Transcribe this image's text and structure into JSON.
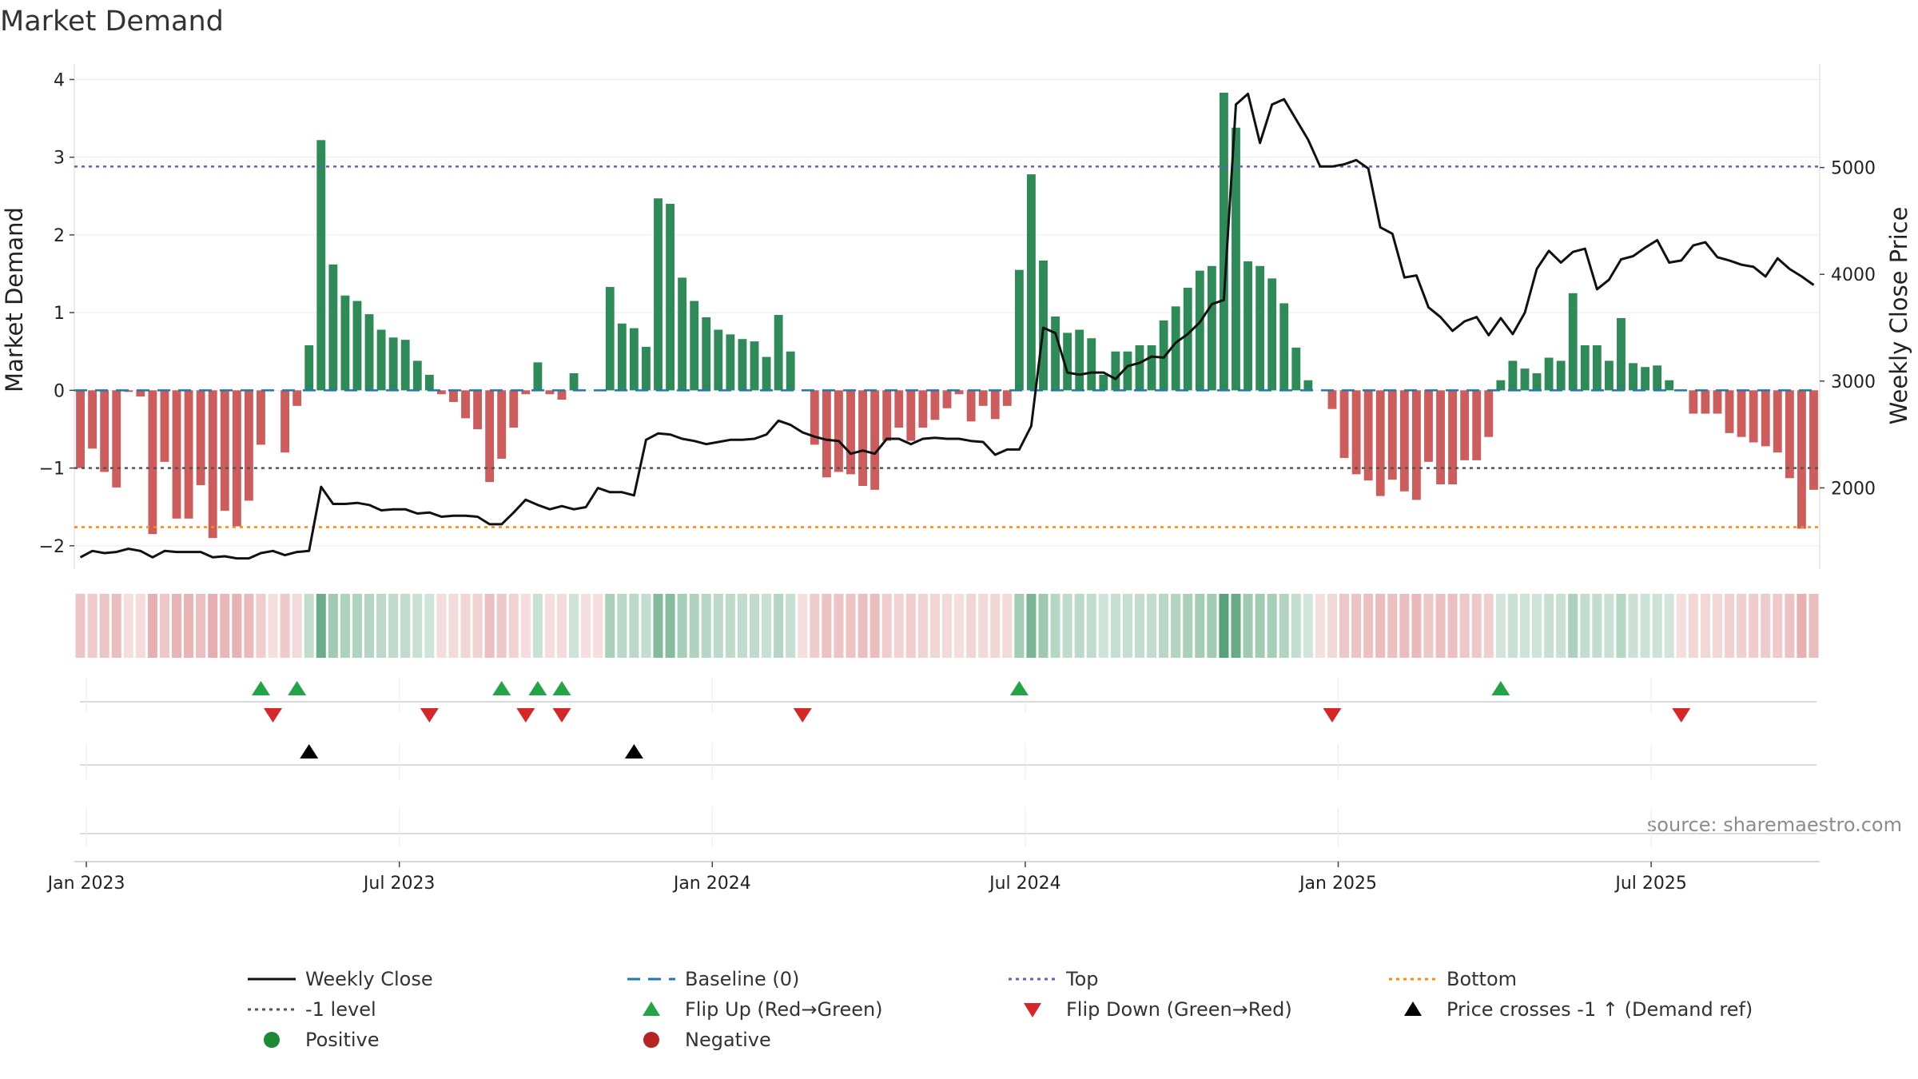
{
  "chart_data": {
    "type": "bar",
    "title": "Market Demand",
    "ylabel": "Market Demand",
    "y2label": "Weekly Close Price",
    "source": "source: sharemaestro.com",
    "ylim": [
      -2.3,
      4.2
    ],
    "y2lim": [
      1240,
      5970
    ],
    "yticks": [
      {
        "v": 4,
        "label": "4"
      },
      {
        "v": 3,
        "label": "3"
      },
      {
        "v": 2,
        "label": "2"
      },
      {
        "v": 1,
        "label": "1"
      },
      {
        "v": 0,
        "label": "0"
      },
      {
        "v": -1,
        "label": "−1"
      },
      {
        "v": -2,
        "label": "−2"
      }
    ],
    "y2ticks": [
      {
        "v": 5000,
        "label": "5000"
      },
      {
        "v": 4000,
        "label": "4000"
      },
      {
        "v": 3000,
        "label": "3000"
      },
      {
        "v": 2000,
        "label": "2000"
      }
    ],
    "xticks": [
      {
        "week": 1,
        "label": "Jan 2023"
      },
      {
        "week": 27,
        "label": "Jul 2023"
      },
      {
        "week": 53,
        "label": "Jan 2024"
      },
      {
        "week": 79,
        "label": "Jul 2024"
      },
      {
        "week": 105,
        "label": "Jan 2025"
      },
      {
        "week": 131,
        "label": "Jul 2025"
      }
    ],
    "week_count": 145,
    "reference_lines": {
      "baseline": 0,
      "top": 2.88,
      "minus_one": -1,
      "bottom": -1.76
    },
    "colors": {
      "positive": "#2e8b57",
      "negative": "#cd5c5c",
      "close": "#111111",
      "baseline": "#1f77b4",
      "top": "#6a5acd",
      "minus_one": "#555555",
      "bottom": "#ff8c00",
      "flip_up": "#22a447",
      "flip_down": "#d62728",
      "cross": "#000000",
      "legend_positive": "#1e8a33",
      "legend_negative": "#b52323"
    },
    "series": [
      {
        "name": "Market Demand",
        "kind": "bar",
        "values": [
          -1.0,
          -0.75,
          -1.05,
          -1.25,
          -0.02,
          -0.08,
          -1.85,
          -0.92,
          -1.65,
          -1.65,
          -1.22,
          -1.9,
          -1.55,
          -1.75,
          -1.42,
          -0.7,
          0.0,
          -0.8,
          -0.2,
          0.58,
          3.22,
          1.62,
          1.22,
          1.15,
          0.98,
          0.78,
          0.68,
          0.65,
          0.38,
          0.2,
          -0.05,
          -0.15,
          -0.36,
          -0.5,
          -1.18,
          -0.88,
          -0.48,
          -0.05,
          0.36,
          -0.05,
          -0.12,
          0.22,
          0.0,
          0.0,
          1.33,
          0.86,
          0.8,
          0.56,
          2.47,
          2.4,
          1.45,
          1.15,
          0.94,
          0.78,
          0.72,
          0.66,
          0.63,
          0.43,
          0.97,
          0.5,
          0.0,
          -0.7,
          -1.12,
          -1.05,
          -1.08,
          -1.23,
          -1.28,
          -0.65,
          -0.48,
          -0.65,
          -0.48,
          -0.38,
          -0.23,
          -0.05,
          -0.4,
          -0.2,
          -0.37,
          -0.2,
          1.55,
          2.78,
          1.67,
          0.95,
          0.74,
          0.78,
          0.67,
          0.2,
          0.5,
          0.5,
          0.58,
          0.58,
          0.9,
          1.08,
          1.32,
          1.54,
          1.6,
          3.83,
          3.38,
          1.66,
          1.6,
          1.44,
          1.12,
          0.55,
          0.13,
          0.0,
          -0.24,
          -0.87,
          -1.08,
          -1.16,
          -1.36,
          -1.15,
          -1.3,
          -1.41,
          -0.92,
          -1.21,
          -1.21,
          -0.9,
          -0.9,
          -0.6,
          0.13,
          0.38,
          0.28,
          0.22,
          0.42,
          0.38,
          1.25,
          0.58,
          0.58,
          0.38,
          0.93,
          0.35,
          0.3,
          0.32,
          0.13,
          0.0,
          -0.3,
          -0.3,
          -0.3,
          -0.55,
          -0.6,
          -0.67,
          -0.72,
          -0.8,
          -1.13,
          -1.78,
          -1.28
        ]
      },
      {
        "name": "Weekly Close",
        "kind": "line",
        "axis": "right",
        "values": [
          1350,
          1410,
          1390,
          1400,
          1430,
          1410,
          1350,
          1410,
          1400,
          1400,
          1400,
          1350,
          1360,
          1340,
          1340,
          1390,
          1410,
          1370,
          1400,
          1410,
          2010,
          1850,
          1850,
          1860,
          1840,
          1790,
          1800,
          1800,
          1760,
          1770,
          1730,
          1740,
          1740,
          1730,
          1660,
          1660,
          1770,
          1890,
          1840,
          1800,
          1830,
          1800,
          1820,
          2000,
          1960,
          1960,
          1930,
          2450,
          2510,
          2500,
          2460,
          2440,
          2410,
          2430,
          2450,
          2450,
          2460,
          2500,
          2630,
          2590,
          2520,
          2480,
          2450,
          2440,
          2320,
          2350,
          2320,
          2460,
          2460,
          2410,
          2460,
          2470,
          2460,
          2460,
          2440,
          2430,
          2310,
          2360,
          2360,
          2580,
          3500,
          3450,
          3080,
          3060,
          3080,
          3080,
          3020,
          3140,
          3170,
          3230,
          3220,
          3360,
          3440,
          3550,
          3720,
          3760,
          5590,
          5690,
          5230,
          5590,
          5640,
          5450,
          5260,
          5010,
          5010,
          5030,
          5070,
          4990,
          4440,
          4380,
          3970,
          3990,
          3690,
          3600,
          3470,
          3560,
          3600,
          3430,
          3590,
          3440,
          3640,
          4050,
          4220,
          4110,
          4210,
          4240,
          3860,
          3950,
          4140,
          4170,
          4250,
          4320,
          4110,
          4130,
          4270,
          4300,
          4160,
          4130,
          4090,
          4070,
          3980,
          4150,
          4050,
          3980,
          3900
        ]
      }
    ],
    "regime_strip": {
      "note": "one tile per week, shade follows Market Demand"
    },
    "flip_up_weeks": [
      15,
      18,
      35,
      38,
      40,
      78,
      118
    ],
    "flip_down_weeks": [
      16,
      29,
      37,
      40,
      60,
      104,
      133
    ],
    "cross_weeks": [
      19,
      46
    ],
    "legend": [
      {
        "label": "Weekly Close",
        "style": "line-solid",
        "color": "#111111"
      },
      {
        "label": "Baseline (0)",
        "style": "line-dashed",
        "color": "#1f77b4"
      },
      {
        "label": "Top",
        "style": "line-dotted",
        "color": "#6a5acd"
      },
      {
        "label": "Bottom",
        "style": "line-dotted",
        "color": "#ff8c00"
      },
      {
        "label": "-1 level",
        "style": "line-dotted",
        "color": "#555555"
      },
      {
        "label": "Flip Up (Red→Green)",
        "style": "triangle-up",
        "color": "#22a447"
      },
      {
        "label": "Flip Down (Green→Red)",
        "style": "triangle-down",
        "color": "#d62728"
      },
      {
        "label": "Price crosses -1 ↑ (Demand ref)",
        "style": "triangle-up",
        "color": "#000000"
      },
      {
        "label": "Positive",
        "style": "dot",
        "color": "#1e8a33"
      },
      {
        "label": "Negative",
        "style": "dot",
        "color": "#b52323"
      }
    ]
  }
}
